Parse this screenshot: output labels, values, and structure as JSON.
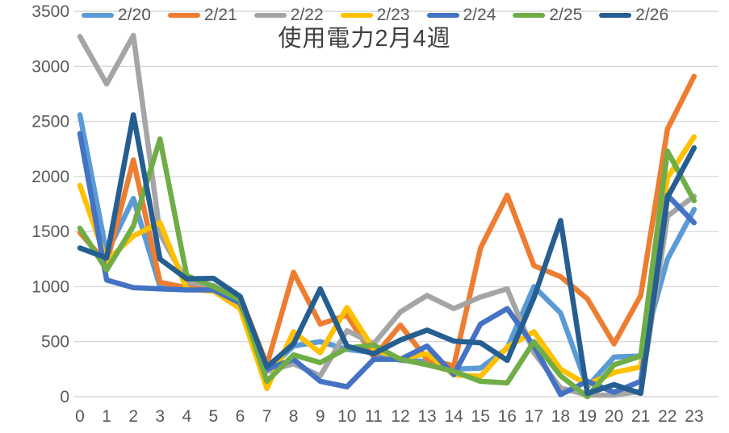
{
  "title": "使用電力2月4週",
  "axes": {
    "y_ticks": [
      0,
      500,
      1000,
      1500,
      2000,
      2500,
      3000,
      3500
    ],
    "x_ticks": [
      0,
      1,
      2,
      3,
      4,
      5,
      6,
      7,
      8,
      9,
      10,
      11,
      12,
      13,
      14,
      15,
      16,
      17,
      18,
      19,
      20,
      21,
      22,
      23
    ]
  },
  "colors": {
    "grid": "#d9d9d9",
    "tick_text": "#595959",
    "title_text": "#404040"
  },
  "chart_data": {
    "type": "line",
    "title": "使用電力2月4週",
    "xlabel": "",
    "ylabel": "",
    "ylim": [
      0,
      3500
    ],
    "ytick_step": 500,
    "grid": true,
    "legend_position": "top",
    "x": [
      0,
      1,
      2,
      3,
      4,
      5,
      6,
      7,
      8,
      9,
      10,
      11,
      12,
      13,
      14,
      15,
      16,
      17,
      18,
      19,
      20,
      21,
      22,
      23
    ],
    "series": [
      {
        "name": "2/20",
        "color": "#5B9BD5",
        "values": [
          2560,
          1300,
          1800,
          1000,
          980,
          975,
          900,
          230,
          460,
          500,
          430,
          400,
          330,
          320,
          250,
          260,
          440,
          1000,
          760,
          90,
          360,
          370,
          1250,
          1700
        ]
      },
      {
        "name": "2/21",
        "color": "#ED7D31",
        "values": [
          1490,
          1210,
          2150,
          1040,
          990,
          1000,
          910,
          290,
          1130,
          660,
          740,
          360,
          650,
          340,
          280,
          1350,
          1830,
          1190,
          1090,
          890,
          480,
          920,
          2430,
          2910
        ]
      },
      {
        "name": "2/22",
        "color": "#A5A5A5",
        "values": [
          3270,
          2840,
          3280,
          1480,
          1040,
          1010,
          870,
          230,
          300,
          190,
          600,
          480,
          770,
          920,
          800,
          905,
          980,
          400,
          80,
          15,
          15,
          50,
          1640,
          1820
        ]
      },
      {
        "name": "2/23",
        "color": "#FFC000",
        "values": [
          1920,
          1230,
          1460,
          1580,
          975,
          960,
          800,
          75,
          590,
          400,
          810,
          430,
          345,
          390,
          200,
          185,
          450,
          590,
          250,
          110,
          220,
          270,
          1990,
          2360
        ]
      },
      {
        "name": "2/24",
        "color": "#4472C4",
        "values": [
          2390,
          1060,
          990,
          980,
          970,
          970,
          850,
          250,
          340,
          140,
          90,
          340,
          340,
          460,
          200,
          660,
          800,
          460,
          20,
          140,
          40,
          140,
          1830,
          1580
        ]
      },
      {
        "name": "2/25",
        "color": "#70AD47",
        "values": [
          1530,
          1150,
          1550,
          2340,
          1100,
          1000,
          880,
          140,
          380,
          310,
          440,
          470,
          340,
          290,
          230,
          140,
          125,
          500,
          190,
          0,
          290,
          370,
          2230,
          1780
        ]
      },
      {
        "name": "2/26",
        "color": "#255E91",
        "values": [
          1350,
          1260,
          2560,
          1250,
          1070,
          1075,
          910,
          270,
          480,
          980,
          460,
          390,
          515,
          605,
          505,
          490,
          330,
          900,
          1600,
          30,
          110,
          30,
          1810,
          2260
        ]
      }
    ]
  }
}
